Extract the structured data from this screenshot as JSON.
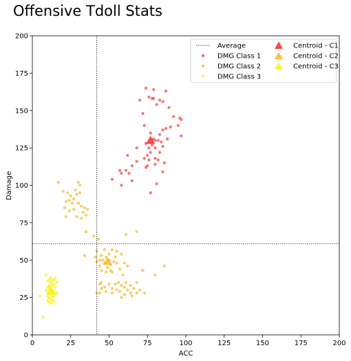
{
  "chart_data": {
    "type": "scatter",
    "title": "Offensive Tdoll Stats",
    "xlabel": "ACC",
    "ylabel": "Damage",
    "xlim": [
      0,
      200
    ],
    "ylim": [
      0,
      200
    ],
    "x_ticks": [
      "0",
      "25",
      "50",
      "75",
      "100",
      "125",
      "150",
      "175",
      "200"
    ],
    "y_ticks": [
      "0",
      "25",
      "50",
      "75",
      "100",
      "125",
      "150",
      "175",
      "200"
    ],
    "grid": false,
    "legend_position": "top-right",
    "reference_lines": {
      "name": "Average",
      "x": 42,
      "y": 61,
      "style": "dotted",
      "color": "#000000"
    },
    "series": [
      {
        "name": "DMG Class 1",
        "color": "#ef4444",
        "points": [
          [
            74,
            165
          ],
          [
            79,
            164
          ],
          [
            87,
            163
          ],
          [
            70,
            157
          ],
          [
            76,
            159
          ],
          [
            79,
            158
          ],
          [
            83,
            157
          ],
          [
            78,
            158
          ],
          [
            85,
            156
          ],
          [
            81,
            154
          ],
          [
            89,
            152
          ],
          [
            72,
            148
          ],
          [
            92,
            146
          ],
          [
            96,
            145
          ],
          [
            97,
            144
          ],
          [
            90,
            139
          ],
          [
            73,
            140
          ],
          [
            77,
            135
          ],
          [
            83,
            134
          ],
          [
            85,
            137
          ],
          [
            87,
            138
          ],
          [
            95,
            140
          ],
          [
            79,
            131
          ],
          [
            80,
            130
          ],
          [
            82,
            130
          ],
          [
            84,
            129
          ],
          [
            88,
            131
          ],
          [
            97,
            133
          ],
          [
            74,
            128
          ],
          [
            78,
            127
          ],
          [
            76,
            125
          ],
          [
            80,
            125
          ],
          [
            85,
            126
          ],
          [
            77,
            122
          ],
          [
            75,
            120
          ],
          [
            73,
            118
          ],
          [
            76,
            117
          ],
          [
            80,
            118
          ],
          [
            82,
            117
          ],
          [
            68,
            116
          ],
          [
            86,
            115
          ],
          [
            65,
            113
          ],
          [
            75,
            113
          ],
          [
            80,
            114
          ],
          [
            61,
            110
          ],
          [
            57,
            110
          ],
          [
            58,
            108
          ],
          [
            63,
            108
          ],
          [
            85,
            109
          ],
          [
            52,
            104
          ],
          [
            65,
            103
          ],
          [
            58,
            100
          ],
          [
            81,
            101
          ],
          [
            77,
            95
          ],
          [
            74,
            112
          ],
          [
            83,
            122
          ],
          [
            68,
            125
          ],
          [
            62,
            120
          ]
        ]
      },
      {
        "name": "DMG Class 2",
        "color": "#f5b932",
        "points": [
          [
            17,
            102
          ],
          [
            30,
            102
          ],
          [
            31,
            100
          ],
          [
            20,
            96
          ],
          [
            28,
            97
          ],
          [
            23,
            95
          ],
          [
            29,
            94
          ],
          [
            31,
            95
          ],
          [
            25,
            93
          ],
          [
            27,
            91
          ],
          [
            24,
            90
          ],
          [
            22,
            89
          ],
          [
            30,
            88
          ],
          [
            26,
            88
          ],
          [
            32,
            86
          ],
          [
            34,
            85
          ],
          [
            21,
            85
          ],
          [
            24,
            83
          ],
          [
            27,
            84
          ],
          [
            36,
            84
          ],
          [
            33,
            82
          ],
          [
            35,
            80
          ],
          [
            22,
            79
          ],
          [
            29,
            79
          ],
          [
            32,
            78
          ],
          [
            35,
            69
          ],
          [
            40,
            66
          ],
          [
            43,
            64
          ],
          [
            61,
            67
          ],
          [
            68,
            69
          ],
          [
            42,
            56
          ],
          [
            47,
            57
          ],
          [
            52,
            57
          ],
          [
            55,
            56
          ],
          [
            58,
            54
          ],
          [
            45,
            53
          ],
          [
            50,
            54
          ],
          [
            54,
            52
          ],
          [
            48,
            52
          ],
          [
            34,
            53
          ],
          [
            41,
            52
          ],
          [
            44,
            50
          ],
          [
            46,
            50
          ],
          [
            50,
            50
          ],
          [
            53,
            49
          ],
          [
            42,
            49
          ],
          [
            47,
            48
          ],
          [
            51,
            47
          ],
          [
            55,
            48
          ],
          [
            60,
            48
          ],
          [
            44,
            46
          ],
          [
            49,
            45
          ],
          [
            62,
            46
          ],
          [
            86,
            46
          ],
          [
            57,
            44
          ],
          [
            45,
            43
          ],
          [
            51,
            43
          ],
          [
            48,
            42
          ],
          [
            52,
            42
          ],
          [
            72,
            43
          ],
          [
            59,
            40
          ],
          [
            80,
            40
          ],
          [
            45,
            35
          ],
          [
            56,
            35
          ],
          [
            61,
            35
          ],
          [
            68,
            35
          ],
          [
            44,
            34
          ],
          [
            50,
            34
          ],
          [
            54,
            34
          ],
          [
            58,
            33
          ],
          [
            64,
            33
          ],
          [
            47,
            32
          ],
          [
            52,
            31
          ],
          [
            60,
            32
          ],
          [
            66,
            31
          ],
          [
            45,
            31
          ],
          [
            55,
            30
          ],
          [
            62,
            30
          ],
          [
            70,
            30
          ],
          [
            48,
            29
          ],
          [
            57,
            29
          ],
          [
            64,
            28
          ],
          [
            42,
            28
          ],
          [
            52,
            28
          ],
          [
            68,
            28
          ],
          [
            73,
            28
          ],
          [
            44,
            28
          ],
          [
            60,
            27
          ],
          [
            65,
            26
          ],
          [
            58,
            25
          ]
        ]
      },
      {
        "name": "DMG Class 3",
        "color": "#f9f01f",
        "points": [
          [
            9,
            40
          ],
          [
            12,
            38
          ],
          [
            15,
            38
          ],
          [
            11,
            37
          ],
          [
            14,
            37
          ],
          [
            10,
            36
          ],
          [
            13,
            36
          ],
          [
            12,
            35
          ],
          [
            14,
            34
          ],
          [
            11,
            33
          ],
          [
            13,
            33
          ],
          [
            10,
            32
          ],
          [
            12,
            32
          ],
          [
            15,
            32
          ],
          [
            11,
            31
          ],
          [
            13,
            30
          ],
          [
            12,
            30
          ],
          [
            10,
            29
          ],
          [
            14,
            29
          ],
          [
            11,
            28
          ],
          [
            13,
            28
          ],
          [
            12,
            27
          ],
          [
            15,
            27
          ],
          [
            10,
            26
          ],
          [
            13,
            26
          ],
          [
            11,
            25
          ],
          [
            14,
            25
          ],
          [
            12,
            24
          ],
          [
            10,
            23
          ],
          [
            13,
            23
          ],
          [
            11,
            22
          ],
          [
            14,
            22
          ],
          [
            12,
            21
          ],
          [
            5,
            26
          ],
          [
            7,
            12
          ],
          [
            16,
            35
          ],
          [
            16,
            28
          ],
          [
            9,
            30
          ]
        ]
      }
    ],
    "centroids": [
      {
        "name": "Centroid - C1",
        "x": 77,
        "y": 130,
        "color": "#ef2b2b"
      },
      {
        "name": "Centroid - C2",
        "x": 49,
        "y": 49,
        "color": "#f7b832"
      },
      {
        "name": "Centroid - C3",
        "x": 12,
        "y": 29,
        "color": "#f7f21e"
      }
    ]
  }
}
